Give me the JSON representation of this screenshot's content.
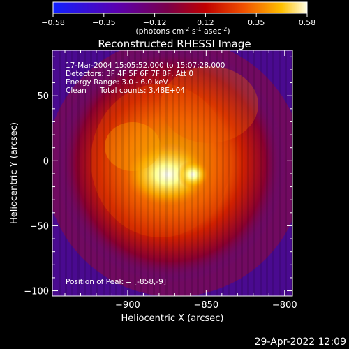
{
  "chart_data": {
    "type": "heatmap",
    "title": "Reconstructed RHESSI Image",
    "xlabel": "Heliocentric X (arcsec)",
    "ylabel": "Heliocentric Y (arcsec)",
    "xlim": [
      -948,
      -795
    ],
    "ylim": [
      -104,
      85
    ],
    "x_ticks": [
      -900,
      -850,
      -800
    ],
    "y_ticks": [
      -100,
      -50,
      0,
      50
    ],
    "colorbar": {
      "min": -0.58,
      "max": 0.58,
      "ticks": [
        "-0.58",
        "-0.35",
        "-0.12",
        "0.12",
        "0.35",
        "0.58"
      ],
      "units_label": "(photons cm",
      "units_sup1": "-2",
      "units_mid": " s",
      "units_sup2": "-1",
      "units_mid2": " asec",
      "units_sup3": "-2",
      "units_end": ")"
    },
    "colormap": [
      "#2a0cff",
      "#5300a8",
      "#6a0a7a",
      "#a0001c",
      "#d21000",
      "#f06000",
      "#ffb000",
      "#ffffe0"
    ],
    "background_color": "#5a1085",
    "annotations": {
      "time_range": "17-Mar-2004 15:05:52.000 to 15:07:28.000",
      "detectors": "Detectors: 3F 4F 5F 6F 7F 8F, Att 0",
      "energy": "Energy Range: 3.0 - 6.0 keV",
      "clean": "Clean",
      "counts": "Total counts: 3.48E+04",
      "peak": "Position of Peak = [-858,-9]"
    },
    "peak": [
      -858,
      -9
    ],
    "grid": false
  },
  "footer": {
    "timestamp": "29-Apr-2022 12:09"
  }
}
